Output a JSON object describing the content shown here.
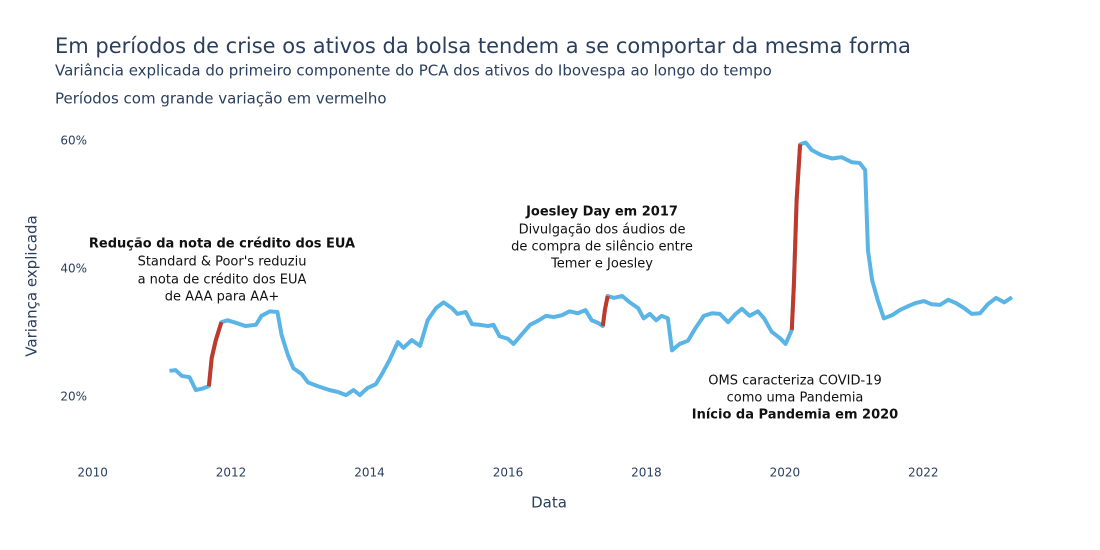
{
  "chart_data": {
    "type": "line",
    "title": "Em períodos de crise os ativos da bolsa tendem a se comportar da mesma forma",
    "subtitle": "Variância explicada do primeiro componente do PCA dos ativos do Ibovespa ao longo do tempo",
    "note": "Períodos com grande variação em vermelho",
    "x_label": "Data",
    "y_label": "Variança explicada",
    "xlim": [
      2009.5,
      2023.7
    ],
    "xticks": [
      2010,
      2012,
      2014,
      2016,
      2018,
      2020,
      2022
    ],
    "ylim": [
      10,
      63
    ],
    "yticks": [
      {
        "value": 20,
        "label": "20%"
      },
      {
        "value": 40,
        "label": "40%"
      },
      {
        "value": 60,
        "label": "60%"
      }
    ],
    "grid": false,
    "x": [
      2011.11,
      2011.2,
      2011.29,
      2011.4,
      2011.49,
      2011.58,
      2011.68,
      2011.72,
      2011.78,
      2011.86,
      2011.95,
      2012.07,
      2012.21,
      2012.36,
      2012.44,
      2012.56,
      2012.67,
      2012.73,
      2012.82,
      2012.9,
      2013.02,
      2013.11,
      2013.25,
      2013.42,
      2013.54,
      2013.66,
      2013.77,
      2013.86,
      2013.97,
      2014.09,
      2014.18,
      2014.29,
      2014.41,
      2014.49,
      2014.61,
      2014.73,
      2014.84,
      2014.96,
      2015.07,
      2015.19,
      2015.27,
      2015.39,
      2015.48,
      2015.59,
      2015.71,
      2015.79,
      2015.88,
      2016.0,
      2016.08,
      2016.2,
      2016.32,
      2016.43,
      2016.55,
      2016.66,
      2016.78,
      2016.89,
      2017.01,
      2017.12,
      2017.21,
      2017.3,
      2017.37,
      2017.4,
      2017.44,
      2017.53,
      2017.65,
      2017.76,
      2017.88,
      2017.96,
      2018.05,
      2018.14,
      2018.22,
      2018.31,
      2018.37,
      2018.48,
      2018.6,
      2018.71,
      2018.83,
      2018.95,
      2019.06,
      2019.18,
      2019.29,
      2019.38,
      2019.49,
      2019.61,
      2019.7,
      2019.81,
      2019.93,
      2020.01,
      2020.1,
      2020.13,
      2020.17,
      2020.22,
      2020.3,
      2020.39,
      2020.53,
      2020.68,
      2020.82,
      2020.97,
      2021.08,
      2021.16,
      2021.2,
      2021.26,
      2021.34,
      2021.43,
      2021.55,
      2021.66,
      2021.78,
      2021.89,
      2022.01,
      2022.12,
      2022.24,
      2022.36,
      2022.47,
      2022.59,
      2022.7,
      2022.82,
      2022.93,
      2023.05,
      2023.17,
      2023.28
    ],
    "series": [
      {
        "color": "#5ab4e5",
        "values": [
          24.1,
          24.2,
          23.3,
          23.1,
          21.1,
          21.3,
          21.7,
          26.1,
          28.9,
          31.7,
          32.0,
          31.6,
          31.1,
          31.3,
          32.7,
          33.4,
          33.3,
          29.7,
          26.6,
          24.5,
          23.6,
          22.3,
          21.7,
          21.1,
          20.8,
          20.3,
          21.1,
          20.3,
          21.4,
          22.0,
          23.6,
          25.8,
          28.6,
          27.7,
          28.9,
          28.0,
          32.0,
          33.9,
          34.8,
          33.9,
          33.0,
          33.3,
          31.4,
          31.3,
          31.1,
          31.3,
          29.5,
          29.1,
          28.3,
          29.8,
          31.3,
          31.9,
          32.7,
          32.5,
          32.8,
          33.4,
          33.1,
          33.6,
          32.0,
          31.6,
          31.1,
          33.6,
          35.8,
          35.5,
          35.8,
          34.8,
          33.9,
          32.3,
          33.0,
          32.0,
          32.7,
          32.3,
          27.3,
          28.3,
          28.8,
          30.8,
          32.7,
          33.1,
          33.0,
          31.7,
          33.0,
          33.8,
          32.7,
          33.4,
          32.3,
          30.2,
          29.2,
          28.3,
          30.5,
          37.5,
          50.8,
          59.5,
          59.8,
          58.6,
          57.8,
          57.3,
          57.5,
          56.7,
          56.6,
          55.5,
          43.0,
          38.3,
          35.2,
          32.3,
          32.8,
          33.6,
          34.2,
          34.7,
          35.0,
          34.5,
          34.4,
          35.2,
          34.7,
          33.9,
          33.0,
          33.1,
          34.5,
          35.5,
          34.8,
          35.6
        ]
      },
      {
        "color": "#c0392b",
        "values": [
          null,
          null,
          null,
          null,
          null,
          null,
          21.7,
          26.1,
          28.9,
          31.7,
          null,
          null,
          null,
          null,
          null,
          null,
          null,
          null,
          null,
          null,
          null,
          null,
          null,
          null,
          null,
          null,
          null,
          null,
          null,
          null,
          null,
          null,
          null,
          null,
          null,
          null,
          null,
          null,
          null,
          null,
          null,
          null,
          null,
          null,
          null,
          null,
          null,
          null,
          null,
          null,
          null,
          null,
          null,
          null,
          null,
          null,
          null,
          null,
          null,
          null,
          31.1,
          33.6,
          35.8,
          null,
          null,
          null,
          null,
          null,
          null,
          null,
          null,
          null,
          null,
          null,
          null,
          null,
          null,
          null,
          null,
          null,
          null,
          null,
          null,
          null,
          null,
          null,
          null,
          null,
          30.5,
          37.5,
          50.8,
          59.5,
          null,
          null,
          null,
          null,
          null,
          null,
          null,
          null,
          null,
          null,
          null,
          null,
          null,
          null,
          null,
          null,
          null,
          null,
          null,
          null,
          null,
          null,
          null,
          null,
          null,
          null,
          null,
          null
        ]
      }
    ],
    "annotations": [
      {
        "title": "Redução da nota de crédito dos EUA",
        "lines": [
          "Standard & Poor's reduziu",
          "a nota de crédito dos EUA",
          "de AAA para AA+"
        ]
      },
      {
        "title": "Joesley Day em 2017",
        "lines": [
          "Divulgação dos áudios de",
          "de compra de silêncio entre",
          "Temer e Joesley"
        ]
      },
      {
        "title": "Início da Pandemia em 2020",
        "lines": [
          "OMS caracteriza COVID-19",
          "como uma Pandemia"
        ]
      }
    ]
  }
}
